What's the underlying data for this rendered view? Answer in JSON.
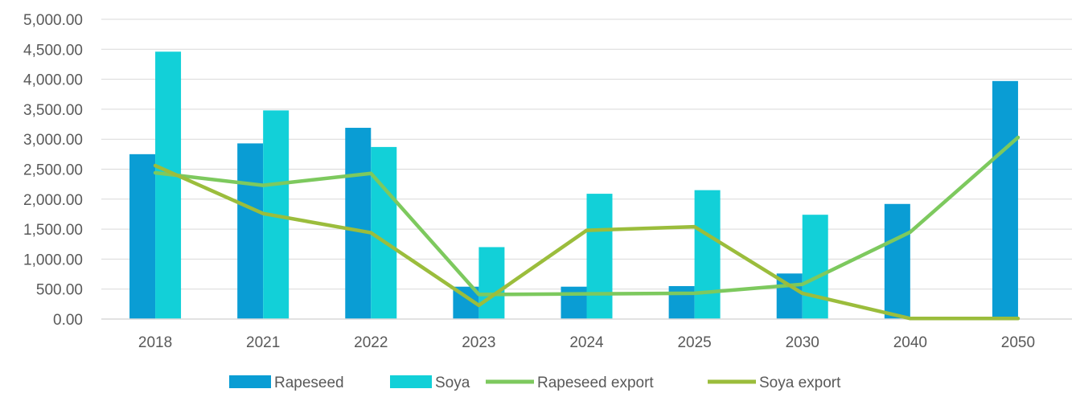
{
  "chart_data": {
    "type": "bar",
    "categories": [
      "2018",
      "2021",
      "2022",
      "2023",
      "2024",
      "2025",
      "2030",
      "2040",
      "2050"
    ],
    "series": [
      {
        "name": "Rapeseed",
        "kind": "bar",
        "color": "#0a9dd4",
        "values": [
          2750,
          2930,
          3190,
          540,
          540,
          550,
          760,
          1920,
          3970
        ]
      },
      {
        "name": "Soya",
        "kind": "bar",
        "color": "#12d0d8",
        "values": [
          4460,
          3480,
          2870,
          1200,
          2090,
          2150,
          1740,
          0,
          0
        ]
      },
      {
        "name": "Rapeseed export",
        "kind": "line",
        "color": "#7dc95e",
        "values": [
          2440,
          2230,
          2430,
          410,
          420,
          430,
          580,
          1450,
          3030
        ]
      },
      {
        "name": "Soya export",
        "kind": "line",
        "color": "#9bbd3c",
        "values": [
          2560,
          1760,
          1440,
          230,
          1480,
          1540,
          430,
          10,
          10
        ]
      }
    ],
    "ylim": [
      0,
      5000
    ],
    "y_ticks": [
      "0.00",
      "500.00",
      "1,000.00",
      "1,500.00",
      "2,000.00",
      "2,500.00",
      "3,000.00",
      "3,500.00",
      "4,000.00",
      "4,500.00",
      "5,000.00"
    ],
    "grid": true,
    "legend_position": "bottom",
    "title": "",
    "xlabel": "",
    "ylabel": ""
  }
}
